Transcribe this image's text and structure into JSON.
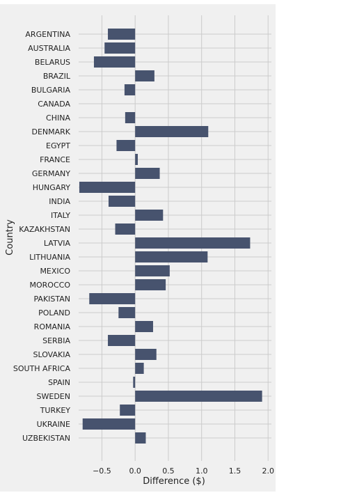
{
  "chart_data": {
    "type": "bar",
    "orientation": "horizontal",
    "xlabel": "Difference ($)",
    "ylabel": "Country",
    "xlim": [
      -0.85,
      2.05
    ],
    "xticks": [
      -0.5,
      0.0,
      0.5,
      1.0,
      1.5,
      2.0
    ],
    "xtick_labels": [
      "−0.5",
      "0.0",
      "0.5",
      "1.0",
      "1.5",
      "2.0"
    ],
    "grid": true,
    "colors": {
      "bar": "#47536e",
      "background": "#f0f0f0",
      "grid": "#cbcbcb"
    },
    "categories": [
      "ARGENTINA",
      "AUSTRALIA",
      "BELARUS",
      "BRAZIL",
      "BULGARIA",
      "CANADA",
      "CHINA",
      "DENMARK",
      "EGYPT",
      "FRANCE",
      "GERMANY",
      "HUNGARY",
      "INDIA",
      "ITALY",
      "KAZAKHSTAN",
      "LATVIA",
      "LITHUANIA",
      "MEXICO",
      "MOROCCO",
      "PAKISTAN",
      "POLAND",
      "ROMANIA",
      "SERBIA",
      "SLOVAKIA",
      "SOUTH AFRICA",
      "SPAIN",
      "SWEDEN",
      "TURKEY",
      "UKRAINE",
      "UZBEKISTAN"
    ],
    "values": [
      -0.41,
      -0.46,
      -0.62,
      0.29,
      -0.16,
      0.0,
      -0.15,
      1.1,
      -0.28,
      0.04,
      0.37,
      -0.84,
      -0.4,
      0.42,
      -0.3,
      1.73,
      1.09,
      0.52,
      0.46,
      -0.69,
      -0.25,
      0.27,
      -0.41,
      0.32,
      0.13,
      -0.03,
      1.91,
      -0.23,
      -0.79,
      0.16
    ]
  }
}
